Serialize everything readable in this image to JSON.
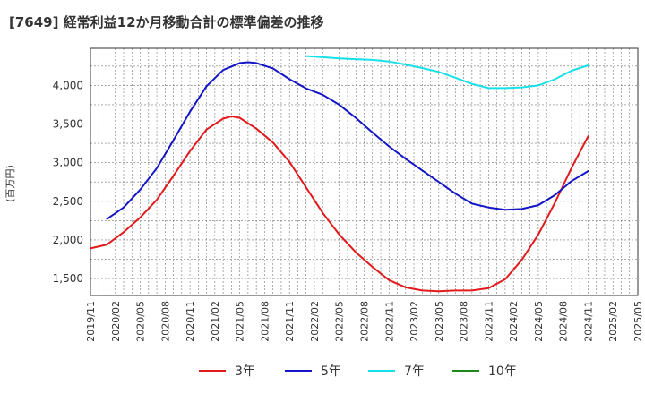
{
  "chart_data": {
    "type": "line",
    "title": "[7649]  経常利益12か月移動合計の標準偏差の推移",
    "ylabel": "(百万円)",
    "xlabel": "",
    "ylim": [
      1280,
      4480
    ],
    "yticks": [
      1500,
      2000,
      2500,
      3000,
      3500,
      4000
    ],
    "ytick_labels": [
      "1,500",
      "2,000",
      "2,500",
      "3,000",
      "3,500",
      "4,000"
    ],
    "xticks": [
      "2019/11",
      "2020/02",
      "2020/05",
      "2020/08",
      "2020/11",
      "2021/02",
      "2021/05",
      "2021/08",
      "2021/11",
      "2022/02",
      "2022/05",
      "2022/08",
      "2022/11",
      "2023/02",
      "2023/05",
      "2023/08",
      "2023/11",
      "2024/02",
      "2024/05",
      "2024/08",
      "2024/11",
      "2025/02",
      "2025/05"
    ],
    "xlim": [
      "2019/11",
      "2025/05"
    ],
    "grid": true,
    "legend_position": "bottom",
    "series": [
      {
        "name": "3年",
        "color": "#e31a1c",
        "points": [
          [
            "2019/11",
            1890
          ],
          [
            "2020/01",
            1940
          ],
          [
            "2020/03",
            2100
          ],
          [
            "2020/05",
            2290
          ],
          [
            "2020/07",
            2520
          ],
          [
            "2020/09",
            2830
          ],
          [
            "2020/11",
            3150
          ],
          [
            "2021/01",
            3430
          ],
          [
            "2021/03",
            3570
          ],
          [
            "2021/04",
            3600
          ],
          [
            "2021/05",
            3580
          ],
          [
            "2021/07",
            3440
          ],
          [
            "2021/09",
            3260
          ],
          [
            "2021/11",
            3010
          ],
          [
            "2022/01",
            2680
          ],
          [
            "2022/03",
            2350
          ],
          [
            "2022/05",
            2070
          ],
          [
            "2022/07",
            1840
          ],
          [
            "2022/09",
            1650
          ],
          [
            "2022/11",
            1480
          ],
          [
            "2023/01",
            1385
          ],
          [
            "2023/03",
            1345
          ],
          [
            "2023/05",
            1335
          ],
          [
            "2023/07",
            1345
          ],
          [
            "2023/09",
            1345
          ],
          [
            "2023/11",
            1375
          ],
          [
            "2024/01",
            1490
          ],
          [
            "2024/03",
            1740
          ],
          [
            "2024/05",
            2070
          ],
          [
            "2024/07",
            2480
          ],
          [
            "2024/09",
            2930
          ],
          [
            "2024/11",
            3340
          ]
        ]
      },
      {
        "name": "5年",
        "color": "#1515c8",
        "points": [
          [
            "2020/01",
            2270
          ],
          [
            "2020/03",
            2420
          ],
          [
            "2020/05",
            2650
          ],
          [
            "2020/07",
            2930
          ],
          [
            "2020/09",
            3290
          ],
          [
            "2020/11",
            3660
          ],
          [
            "2021/01",
            3990
          ],
          [
            "2021/03",
            4200
          ],
          [
            "2021/05",
            4290
          ],
          [
            "2021/06",
            4300
          ],
          [
            "2021/07",
            4290
          ],
          [
            "2021/09",
            4220
          ],
          [
            "2021/11",
            4080
          ],
          [
            "2022/01",
            3960
          ],
          [
            "2022/03",
            3880
          ],
          [
            "2022/05",
            3750
          ],
          [
            "2022/07",
            3580
          ],
          [
            "2022/09",
            3390
          ],
          [
            "2022/11",
            3210
          ],
          [
            "2023/01",
            3050
          ],
          [
            "2023/03",
            2900
          ],
          [
            "2023/05",
            2750
          ],
          [
            "2023/07",
            2600
          ],
          [
            "2023/09",
            2470
          ],
          [
            "2023/11",
            2420
          ],
          [
            "2024/01",
            2390
          ],
          [
            "2024/03",
            2400
          ],
          [
            "2024/05",
            2450
          ],
          [
            "2024/07",
            2580
          ],
          [
            "2024/09",
            2760
          ],
          [
            "2024/11",
            2890
          ]
        ]
      },
      {
        "name": "7年",
        "color": "#18e0e8",
        "points": [
          [
            "2022/01",
            4380
          ],
          [
            "2022/03",
            4365
          ],
          [
            "2022/05",
            4350
          ],
          [
            "2022/07",
            4340
          ],
          [
            "2022/09",
            4330
          ],
          [
            "2022/11",
            4310
          ],
          [
            "2023/01",
            4270
          ],
          [
            "2023/03",
            4225
          ],
          [
            "2023/05",
            4175
          ],
          [
            "2023/07",
            4100
          ],
          [
            "2023/09",
            4020
          ],
          [
            "2023/11",
            3965
          ],
          [
            "2024/01",
            3965
          ],
          [
            "2024/03",
            3975
          ],
          [
            "2024/05",
            4000
          ],
          [
            "2024/07",
            4080
          ],
          [
            "2024/09",
            4190
          ],
          [
            "2024/11",
            4260
          ]
        ]
      },
      {
        "name": "10年",
        "color": "#1a8a1a",
        "points": []
      }
    ]
  }
}
